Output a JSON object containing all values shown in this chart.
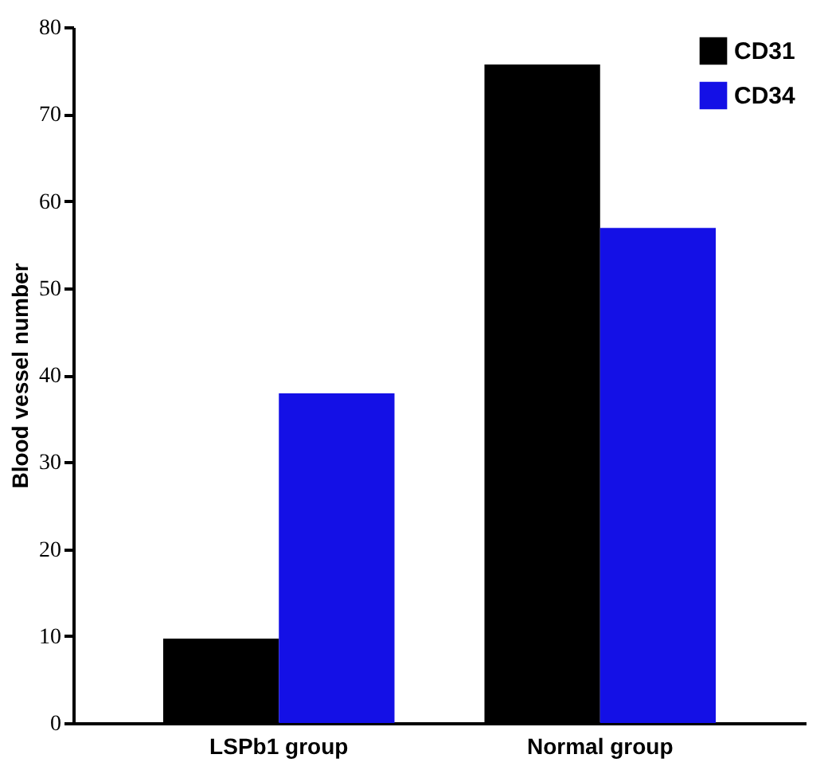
{
  "chart_data": {
    "type": "bar",
    "ylabel": "Blood vessel number",
    "categories": [
      "LSPb1 group",
      "Normal group"
    ],
    "series": [
      {
        "name": "CD31",
        "color": "#000000",
        "values": [
          9.7,
          75.7
        ]
      },
      {
        "name": "CD34",
        "color": "#1410e6",
        "values": [
          37.9,
          56.9
        ]
      }
    ],
    "ylim": [
      0,
      80
    ],
    "yticks": [
      0,
      10,
      20,
      30,
      40,
      50,
      60,
      70,
      80
    ],
    "grid": false,
    "legend": "top right"
  }
}
